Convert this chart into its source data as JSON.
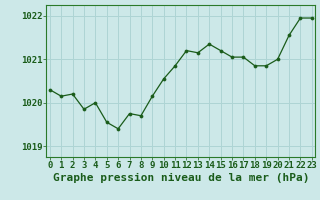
{
  "x": [
    0,
    1,
    2,
    3,
    4,
    5,
    6,
    7,
    8,
    9,
    10,
    11,
    12,
    13,
    14,
    15,
    16,
    17,
    18,
    19,
    20,
    21,
    22,
    23
  ],
  "y": [
    1020.3,
    1020.15,
    1020.2,
    1019.85,
    1020.0,
    1019.55,
    1019.4,
    1019.75,
    1019.7,
    1020.15,
    1020.55,
    1020.85,
    1021.2,
    1021.15,
    1021.35,
    1021.2,
    1021.05,
    1021.05,
    1020.85,
    1020.85,
    1021.0,
    1021.55,
    1021.95,
    1021.95
  ],
  "line_color": "#1a5c1a",
  "marker_color": "#1a5c1a",
  "bg_color": "#cce8e8",
  "grid_color": "#aed4d4",
  "title": "Graphe pression niveau de la mer (hPa)",
  "ylim": [
    1018.75,
    1022.25
  ],
  "yticks": [
    1019,
    1020,
    1021,
    1022
  ],
  "xlim": [
    -0.3,
    23.3
  ],
  "xticks": [
    0,
    1,
    2,
    3,
    4,
    5,
    6,
    7,
    8,
    9,
    10,
    11,
    12,
    13,
    14,
    15,
    16,
    17,
    18,
    19,
    20,
    21,
    22,
    23
  ],
  "title_fontsize": 8,
  "tick_fontsize": 6.5,
  "title_color": "#1a5c1a",
  "tick_color": "#1a5c1a",
  "axis_color": "#2a7a2a"
}
